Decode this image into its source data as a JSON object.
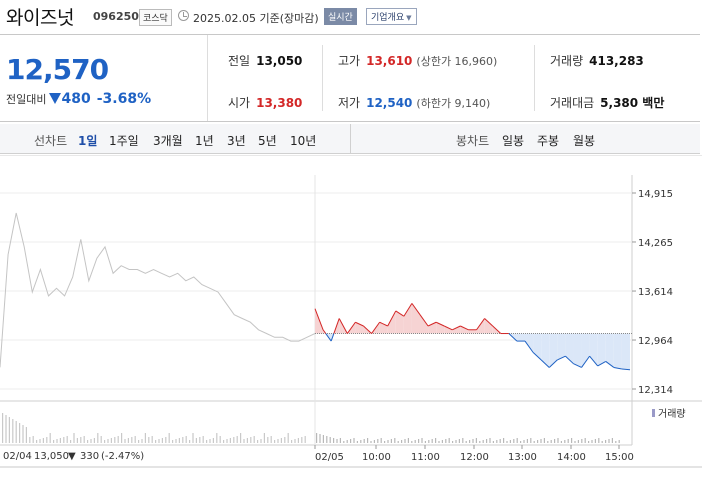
{
  "header": {
    "stock_name": "와이즈넛",
    "stock_code": "096250",
    "market_badge": "코스닥",
    "as_of": "2025.02.05 기준(장마감)",
    "realtime_badge": "실시간",
    "company_info_button": "기업개요",
    "icons": [
      "clock-icon",
      "chevron-down-icon"
    ]
  },
  "quote": {
    "price": "12,570",
    "change_label": "전일대비",
    "change_amount": "480",
    "change_percent": "-3.68%",
    "prev_close": {
      "label": "전일",
      "value": "13,050"
    },
    "open": {
      "label": "시가",
      "value": "13,380"
    },
    "high": {
      "label": "고가",
      "value": "13,610",
      "limit_label": "(상한가 16,960)"
    },
    "low": {
      "label": "저가",
      "value": "12,540",
      "limit_label": "(하한가 9,140)"
    },
    "volume": {
      "label": "거래량",
      "value": "413,283"
    },
    "amount": {
      "label": "거래대금",
      "value": "5,380 백만"
    },
    "colors": {
      "up": "#d32727",
      "down": "#1f62c4"
    }
  },
  "tabs": {
    "line_chart_label": "선차트",
    "line_periods": [
      "1일",
      "1주일",
      "3개월",
      "1년",
      "3년",
      "5년",
      "10년"
    ],
    "selected_period": "1일",
    "candle_chart_label": "봉차트",
    "candle_periods": [
      "일봉",
      "주봉",
      "월봉"
    ]
  },
  "chart_data": {
    "type": "line",
    "y_ticks": [
      "14,915",
      "14,265",
      "13,614",
      "12,964",
      "12,314"
    ],
    "ylim": [
      12200,
      15000
    ],
    "x_tick_labels": [
      "02/05",
      "10:00",
      "11:00",
      "12:00",
      "13:00",
      "14:00",
      "15:00"
    ],
    "reference_price": 13050,
    "series": [
      {
        "day": "02/04",
        "x": [
          "09:00",
          "09:10",
          "09:20",
          "09:30",
          "09:40",
          "09:50",
          "10:00",
          "10:10",
          "10:20",
          "10:30",
          "10:40",
          "10:50",
          "11:00",
          "11:10",
          "11:20",
          "11:30",
          "11:40",
          "11:50",
          "12:00",
          "12:10",
          "12:20",
          "12:30",
          "12:40",
          "12:50",
          "13:00",
          "13:10",
          "13:20",
          "13:30",
          "13:40",
          "13:50",
          "14:00",
          "14:10",
          "14:20",
          "14:30",
          "14:40",
          "14:50",
          "15:00",
          "15:10",
          "15:20",
          "15:30"
        ],
        "values": [
          12600,
          14100,
          14650,
          14200,
          13600,
          13900,
          13550,
          13650,
          13550,
          13800,
          14300,
          13750,
          14050,
          14200,
          13850,
          13950,
          13900,
          13900,
          13850,
          13900,
          13850,
          13800,
          13850,
          13750,
          13800,
          13700,
          13650,
          13600,
          13450,
          13300,
          13250,
          13200,
          13100,
          13050,
          13000,
          13000,
          12950,
          12950,
          13000,
          13050
        ]
      },
      {
        "day": "02/05",
        "x": [
          "09:00",
          "09:10",
          "09:20",
          "09:30",
          "09:40",
          "09:50",
          "10:00",
          "10:10",
          "10:20",
          "10:30",
          "10:40",
          "10:50",
          "11:00",
          "11:10",
          "11:20",
          "11:30",
          "11:40",
          "11:50",
          "12:00",
          "12:10",
          "12:20",
          "12:30",
          "12:40",
          "12:50",
          "13:00",
          "13:10",
          "13:20",
          "13:30",
          "13:40",
          "13:50",
          "14:00",
          "14:10",
          "14:20",
          "14:30",
          "14:40",
          "14:50",
          "15:00",
          "15:10",
          "15:20",
          "15:30"
        ],
        "values": [
          13380,
          13100,
          12950,
          13250,
          13050,
          13200,
          13150,
          13050,
          13200,
          13150,
          13350,
          13280,
          13450,
          13300,
          13150,
          13200,
          13150,
          13100,
          13150,
          13100,
          13100,
          13250,
          13150,
          13050,
          13050,
          12950,
          12950,
          12800,
          12700,
          12600,
          12700,
          12750,
          12650,
          12600,
          12750,
          12620,
          12680,
          12600,
          12580,
          12570
        ]
      }
    ]
  },
  "volume_legend": "거래량",
  "footer": {
    "prev_date": "02/04",
    "prev_close": "13,050",
    "prev_change": "330",
    "prev_pct": "(-2.47%)"
  }
}
